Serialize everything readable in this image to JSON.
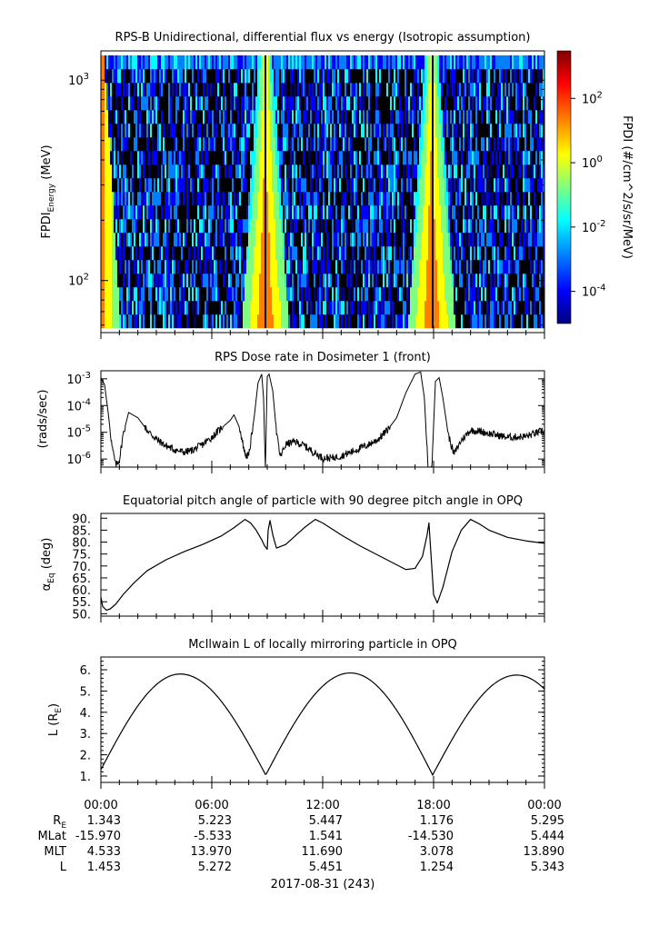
{
  "chart_data": [
    {
      "type": "heatmap",
      "title": "RPS-B  Unidirectional, differential flux vs energy (Isotropic assumption)",
      "ylabel_main": "FPDI",
      "ylabel_sub": "Energy",
      "ylabel_unit": "(MeV)",
      "yscale": "log",
      "ylim": [
        55,
        1400
      ],
      "yticks": [
        {
          "v": 100,
          "base": "10",
          "exp": "2"
        },
        {
          "v": 1000,
          "base": "10",
          "exp": "3"
        }
      ],
      "xlim": [
        0,
        24
      ],
      "colorbar": {
        "label": "FPDI (#/cm^2/s/sr/MeV)",
        "scale": "log",
        "lim": [
          1e-05,
          3000
        ],
        "ticks": [
          {
            "v": 100,
            "base": "10",
            "exp": "2"
          },
          {
            "v": 1,
            "base": "10",
            "exp": "0"
          },
          {
            "v": 0.01,
            "base": "10",
            "exp": "-2"
          },
          {
            "v": 0.0001,
            "base": "10",
            "exp": "-4"
          }
        ],
        "colors": [
          "#00007f",
          "#0000ff",
          "#007fff",
          "#00ffff",
          "#7fff7f",
          "#ffff00",
          "#ff7f00",
          "#ff0000",
          "#7f0000"
        ]
      },
      "peaks_hours": [
        8.9,
        17.9
      ],
      "energy_bins": 20
    },
    {
      "type": "line",
      "title": "RPS  Dose rate in Dosimeter 1 (front)",
      "ylabel": "(rads/sec)",
      "yscale": "log",
      "ylim": [
        5e-07,
        0.002
      ],
      "yticks": [
        {
          "v": 0.001,
          "base": "10",
          "exp": "-3"
        },
        {
          "v": 0.0001,
          "base": "10",
          "exp": "-4"
        },
        {
          "v": 1e-05,
          "base": "10",
          "exp": "-5"
        },
        {
          "v": 1e-06,
          "base": "10",
          "exp": "-6"
        }
      ],
      "xlim": [
        0,
        24
      ],
      "x": [
        0,
        0.2,
        0.4,
        0.6,
        0.8,
        1.0,
        1.2,
        1.5,
        2.0,
        2.5,
        3.0,
        3.5,
        4.0,
        4.5,
        5.0,
        5.5,
        6.0,
        6.5,
        7.0,
        7.2,
        7.5,
        7.8,
        8.0,
        8.3,
        8.5,
        8.7,
        8.8,
        8.9,
        9.0,
        9.1,
        9.3,
        9.5,
        9.7,
        10.0,
        10.5,
        11.0,
        11.5,
        12.0,
        12.5,
        13.0,
        13.5,
        14.0,
        14.5,
        15.0,
        15.5,
        16.0,
        16.5,
        17.0,
        17.3,
        17.5,
        17.7,
        17.9,
        18.1,
        18.3,
        18.5,
        18.8,
        19.1,
        19.5,
        20.0,
        20.5,
        21.0,
        22.0,
        23.0,
        24.0
      ],
      "y": [
        0.0011,
        0.0006,
        5e-05,
        3e-06,
        6e-07,
        9e-07,
        8e-06,
        5.5e-05,
        3.5e-05,
        1.2e-05,
        5.5e-06,
        3.2e-06,
        2.2e-06,
        1.8e-06,
        2.2e-06,
        3.5e-06,
        6.5e-06,
        1.4e-05,
        2.8e-05,
        4.5e-05,
        1.5e-05,
        1.5e-06,
        1.3e-06,
        4e-05,
        0.0007,
        0.0015,
        0.0002,
        5e-07,
        0.0012,
        0.0015,
        0.00035,
        1e-05,
        1.2e-06,
        3.5e-06,
        4.5e-06,
        3.2e-06,
        1.8e-06,
        1.1e-06,
        1.1e-06,
        1.3e-06,
        1.8e-06,
        2.5e-06,
        3.5e-06,
        5.5e-06,
        1.2e-05,
        3.5e-05,
        0.0003,
        0.0015,
        0.0018,
        0.0002,
        5e-07,
        4e-07,
        0.0008,
        0.0011,
        0.0002,
        8e-06,
        1.5e-06,
        5e-06,
        1.2e-05,
        1.1e-05,
        9e-06,
        6.5e-06,
        7e-06,
        1.2e-05
      ]
    },
    {
      "type": "line",
      "title": "Equatorial pitch angle of particle with 90 degree pitch angle in OPQ",
      "ylabel": "α",
      "ylabel_sub": "Eq",
      "ylabel_unit": "(deg)",
      "ylim": [
        49,
        92
      ],
      "yticks": [
        50,
        55,
        60,
        65,
        70,
        75,
        80,
        85,
        90
      ],
      "ytick_labels": [
        "50.",
        "55.",
        "60.",
        "65.",
        "70.",
        "75.",
        "80.",
        "85.",
        "90."
      ],
      "xlim": [
        0,
        24
      ],
      "x": [
        0,
        0.1,
        0.3,
        0.5,
        0.8,
        1.2,
        1.8,
        2.5,
        3.5,
        4.5,
        5.5,
        6.5,
        7.2,
        7.8,
        8.1,
        8.4,
        8.7,
        8.85,
        9.0,
        9.05,
        9.15,
        9.3,
        9.5,
        10.0,
        10.5,
        11.0,
        11.6,
        12.0,
        13.0,
        14.0,
        15.0,
        16.0,
        16.5,
        17.0,
        17.4,
        17.65,
        17.75,
        17.85,
        18.0,
        18.2,
        18.5,
        19.0,
        19.5,
        20.0,
        20.5,
        21.0,
        22.0,
        23.0,
        24.0
      ],
      "y": [
        57,
        53,
        51.5,
        52,
        54,
        58,
        63,
        68,
        72.5,
        76,
        79,
        82.5,
        86,
        89.5,
        88,
        85,
        81,
        78.5,
        77,
        85,
        89,
        83,
        77.5,
        79,
        82.5,
        86,
        89.5,
        88,
        83,
        78.5,
        74.5,
        70.5,
        68.5,
        69,
        74,
        83,
        88,
        76,
        58,
        54.5,
        61,
        76,
        85,
        89.5,
        87.5,
        85,
        82,
        80.5,
        79.5
      ]
    },
    {
      "type": "line",
      "title": "McIlwain L of locally mirroring particle in OPQ",
      "ylabel": "L (R",
      "ylabel_sub": "E",
      "ylabel_close": ")",
      "ylim": [
        0.7,
        6.6
      ],
      "yticks": [
        1,
        2,
        3,
        4,
        5,
        6
      ],
      "ytick_labels": [
        "1.",
        "2.",
        "3.",
        "4.",
        "5.",
        "6."
      ],
      "xlim": [
        0,
        24
      ],
      "arches": [
        {
          "start": 0,
          "end": 8.92,
          "peak_x": 4.3,
          "peak": 5.8,
          "min": 1.05
        },
        {
          "start": 8.92,
          "end": 17.95,
          "peak_x": 13.5,
          "peak": 5.85,
          "min": 1.05
        },
        {
          "start": 17.95,
          "end": 26.9,
          "peak_x": 22.5,
          "peak": 5.75,
          "min": 1.05
        }
      ],
      "start_value": 1.3
    }
  ],
  "xaxis": {
    "ticks": [
      "00:00",
      "06:00",
      "12:00",
      "18:00",
      "00:00"
    ],
    "row_labels": [
      {
        "main": "R",
        "sub": "E"
      },
      {
        "main": "MLat",
        "sub": ""
      },
      {
        "main": "MLT",
        "sub": ""
      },
      {
        "main": "L",
        "sub": ""
      }
    ],
    "rows": [
      [
        "1.343",
        "5.223",
        "5.447",
        "1.176",
        "5.295"
      ],
      [
        "-15.970",
        "-5.533",
        "1.541",
        "-14.530",
        "5.444"
      ],
      [
        "4.533",
        "13.970",
        "11.690",
        "3.078",
        "13.890"
      ],
      [
        "1.453",
        "5.272",
        "5.451",
        "1.254",
        "5.343"
      ]
    ],
    "date": "2017-08-31 (243)"
  }
}
